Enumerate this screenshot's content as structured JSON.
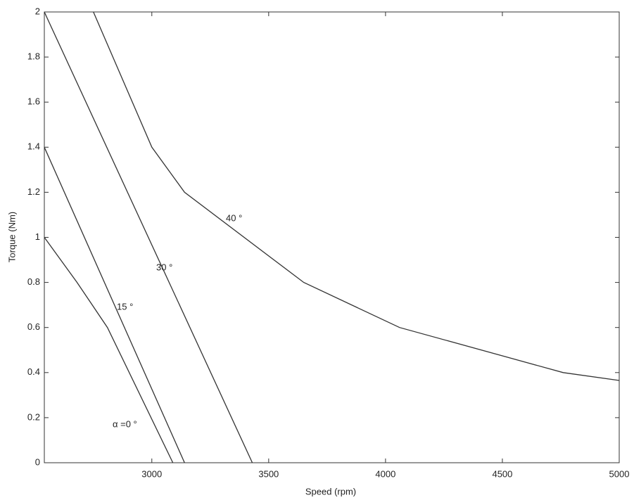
{
  "chart_data": {
    "type": "line",
    "x_label": "Speed (rpm)",
    "y_label": "Torque (Nm)",
    "xlim": [
      2540,
      5000
    ],
    "ylim": [
      0,
      2
    ],
    "xticks": [
      3000,
      3500,
      4000,
      4500,
      5000
    ],
    "yticks": [
      0,
      0.2,
      0.4,
      0.6,
      0.8,
      1,
      1.2,
      1.4,
      1.6,
      1.8,
      2
    ],
    "grid": false,
    "series": [
      {
        "name": "α =0 °",
        "color": "#333333",
        "x": [
          2540,
          2680,
          2810,
          3090
        ],
        "values": [
          1.0,
          0.8,
          0.6,
          0
        ]
      },
      {
        "name": "15 °",
        "color": "#333333",
        "x": [
          2540,
          3140
        ],
        "values": [
          1.4,
          0
        ]
      },
      {
        "name": "30 °",
        "color": "#333333",
        "x": [
          2540,
          3430
        ],
        "values": [
          2.0,
          0
        ]
      },
      {
        "name": "40 °",
        "color": "#333333",
        "x": [
          2750,
          3000,
          3140,
          3650,
          4060,
          4760,
          5000
        ],
        "values": [
          2.0,
          1.4,
          1.2,
          0.8,
          0.6,
          0.4,
          0.365
        ]
      }
    ]
  }
}
